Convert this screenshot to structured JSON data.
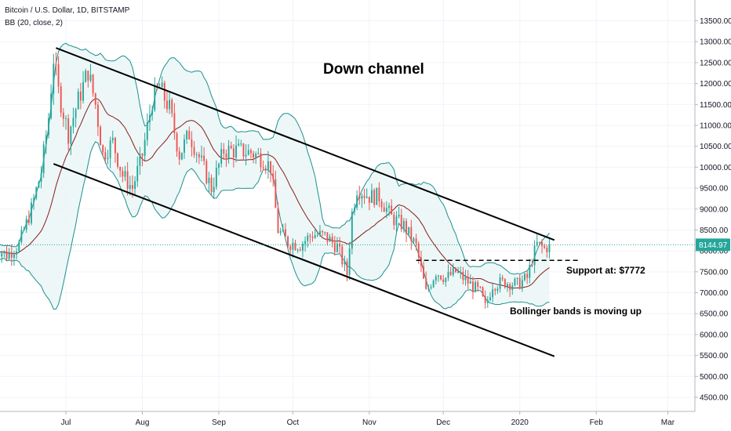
{
  "legend": {
    "symbol": "Bitcoin / U.S. Dollar, 1D, BITSTAMP",
    "indicator": "BB (20, close, 2)"
  },
  "annotations": {
    "channel": "Down channel",
    "support": "Support at: $7772",
    "bollinger": "Bollinger bands is moving up"
  },
  "colors": {
    "up": "#26a69a",
    "down": "#ef5350",
    "band": "#1e8f8f",
    "band_fill": "#e8f5f5",
    "basis": "#8b1a1a",
    "price_line": "#26a69a",
    "badge": "#26a69a"
  },
  "chart_data": {
    "type": "candlestick",
    "title": "Bitcoin / U.S. Dollar, 1D, BITSTAMP",
    "y_ticks": [
      4500,
      5000,
      5500,
      6000,
      6500,
      7000,
      7500,
      8000,
      8500,
      9000,
      9500,
      10000,
      10500,
      11000,
      11500,
      12000,
      12500,
      13000,
      13500
    ],
    "x_ticks": [
      "Jul",
      "Aug",
      "Sep",
      "Oct",
      "Nov",
      "Dec",
      "2020",
      "Feb",
      "Mar"
    ],
    "x_tick_dates": [
      "2019-07-01",
      "2019-08-01",
      "2019-09-01",
      "2019-10-01",
      "2019-11-01",
      "2019-12-01",
      "2020-01-01",
      "2020-02-01",
      "2020-03-01"
    ],
    "last_price": "8144.97",
    "support_level": 7772,
    "bollinger_bands": {
      "length": 20,
      "source": "close",
      "stddev": 2
    },
    "keyframes": [
      [
        "2019-06-02",
        8100
      ],
      [
        "2019-06-07",
        7900
      ],
      [
        "2019-06-12",
        8150
      ],
      [
        "2019-06-17",
        9000
      ],
      [
        "2019-06-21",
        9900
      ],
      [
        "2019-06-24",
        11200
      ],
      [
        "2019-06-26",
        12600
      ],
      [
        "2019-06-28",
        11800
      ],
      [
        "2019-07-02",
        10800
      ],
      [
        "2019-07-06",
        11600
      ],
      [
        "2019-07-10",
        12300
      ],
      [
        "2019-07-13",
        11500
      ],
      [
        "2019-07-16",
        10300
      ],
      [
        "2019-07-20",
        10600
      ],
      [
        "2019-07-24",
        9800
      ],
      [
        "2019-07-28",
        9500
      ],
      [
        "2019-08-01",
        10300
      ],
      [
        "2019-08-05",
        11600
      ],
      [
        "2019-08-08",
        11900
      ],
      [
        "2019-08-12",
        11400
      ],
      [
        "2019-08-16",
        10300
      ],
      [
        "2019-08-20",
        10800
      ],
      [
        "2019-08-25",
        10100
      ],
      [
        "2019-08-29",
        9500
      ],
      [
        "2019-09-03",
        10400
      ],
      [
        "2019-09-08",
        10400
      ],
      [
        "2019-09-14",
        10350
      ],
      [
        "2019-09-19",
        10200
      ],
      [
        "2019-09-22",
        10000
      ],
      [
        "2019-09-25",
        8500
      ],
      [
        "2019-09-29",
        8200
      ],
      [
        "2019-10-04",
        8150
      ],
      [
        "2019-10-09",
        8400
      ],
      [
        "2019-10-14",
        8350
      ],
      [
        "2019-10-19",
        8100
      ],
      [
        "2019-10-23",
        7450
      ],
      [
        "2019-10-25",
        8900
      ],
      [
        "2019-10-27",
        9500
      ],
      [
        "2019-11-01",
        9300
      ],
      [
        "2019-11-05",
        9300
      ],
      [
        "2019-11-10",
        8800
      ],
      [
        "2019-11-15",
        8600
      ],
      [
        "2019-11-20",
        8100
      ],
      [
        "2019-11-24",
        7000
      ],
      [
        "2019-11-28",
        7500
      ],
      [
        "2019-12-02",
        7350
      ],
      [
        "2019-12-06",
        7500
      ],
      [
        "2019-12-11",
        7250
      ],
      [
        "2019-12-16",
        7000
      ],
      [
        "2019-12-18",
        6650
      ],
      [
        "2019-12-21",
        7200
      ],
      [
        "2019-12-26",
        7250
      ],
      [
        "2019-12-31",
        7200
      ],
      [
        "2020-01-04",
        7350
      ],
      [
        "2020-01-06",
        7800
      ],
      [
        "2020-01-08",
        8150
      ],
      [
        "2020-01-11",
        8050
      ],
      [
        "2020-01-13",
        8150
      ]
    ],
    "channel_lines": [
      {
        "name": "upper",
        "from": [
          "2019-06-27",
          12850
        ],
        "to": [
          "2020-01-15",
          8260
        ]
      },
      {
        "name": "lower",
        "from": [
          "2019-06-26",
          10080
        ],
        "to": [
          "2020-01-15",
          5480
        ]
      }
    ]
  }
}
